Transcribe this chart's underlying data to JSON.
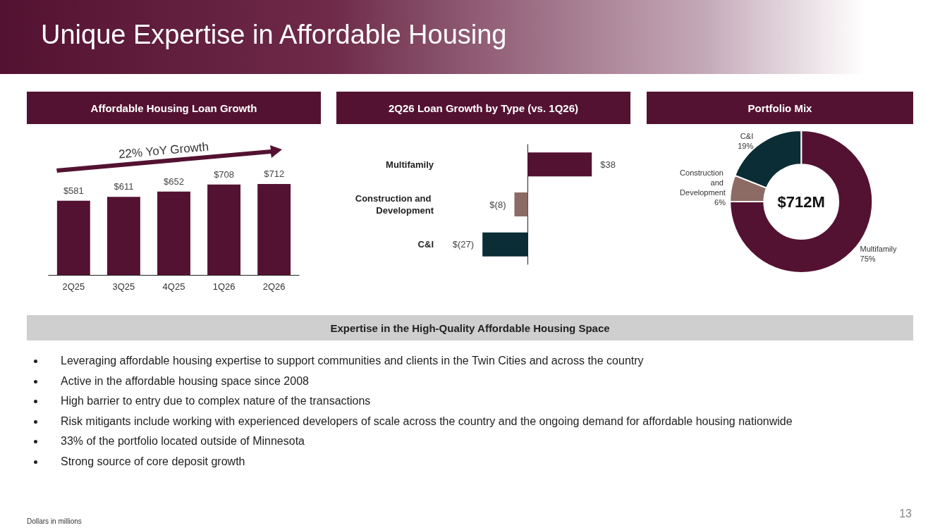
{
  "chart_data": [
    {
      "type": "other",
      "title": "Unique Expertise in Affordable Housing",
      "annotations": [
        "Dollars in millions",
        "13"
      ]
    },
    {
      "type": "bar",
      "title": "Affordable Housing Loan Growth",
      "categories": [
        "2Q25",
        "3Q25",
        "4Q25",
        "1Q26",
        "2Q26"
      ],
      "values": [
        581,
        611,
        652,
        708,
        712
      ],
      "color": "#541232",
      "value_labels": [
        "$581",
        "$611",
        "$652",
        "$708",
        "$712"
      ],
      "annotations": [
        "22% YoY Growth"
      ]
    },
    {
      "type": "bar",
      "orientation": "horizontal",
      "title": "2Q26 Loan Growth by Type (vs. 1Q26)",
      "categories": [
        "Multifamily",
        "Construction and Development",
        "C&I"
      ],
      "values": [
        38,
        -8,
        -27
      ],
      "colors": [
        "#541232",
        "#8c6b64",
        "#0b2d35"
      ],
      "value_labels": [
        "$38",
        "$(8)",
        "$(27)"
      ]
    },
    {
      "type": "donut",
      "title": "Portfolio Mix",
      "categories": [
        "Multifamily",
        "Construction and Development",
        "C&I"
      ],
      "values": [
        75,
        6,
        19
      ],
      "colors": [
        "#541232",
        "#8c6b64",
        "#0b2d35"
      ],
      "value_labels": [
        "75%",
        "6%",
        "19%"
      ],
      "annotations": [
        "$712M"
      ]
    },
    {
      "type": "other",
      "title": "Expertise in the High-Quality Affordable Housing Space",
      "annotations": [
        "Leveraging affordable housing expertise to support communities and clients in the Twin Cities and across the country",
        "Active in the affordable housing space since 2008",
        "High barrier to entry due to complex nature of the transactions",
        "Risk mitigants include working with experienced developers of scale across the country and the ongoing demand for affordable housing nationwide",
        "33% of the portfolio located outside of Minnesota",
        "Strong source of core deposit growth"
      ]
    }
  ]
}
